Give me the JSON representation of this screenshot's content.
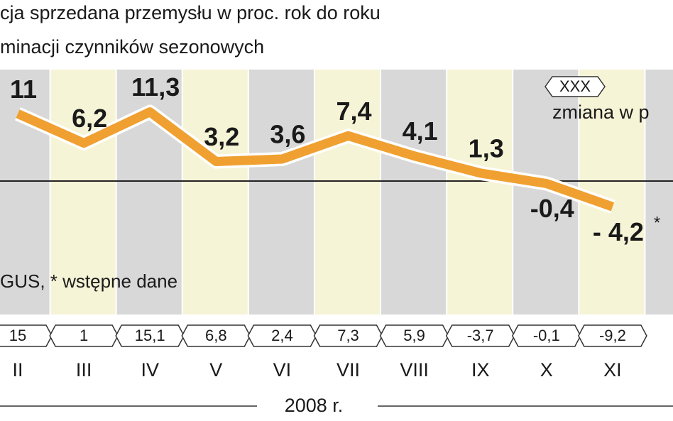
{
  "chart_data": {
    "type": "line",
    "title": "cja sprzedana przemysłu w proc. rok do roku",
    "subtitle": "minacji czynników sezonowych",
    "categories": [
      "II",
      "III",
      "IV",
      "V",
      "VI",
      "VII",
      "VIII",
      "IX",
      "X",
      "XI"
    ],
    "series": [
      {
        "name": "zmiana w p",
        "color": "#f0a030",
        "values": [
          11,
          6.2,
          11.3,
          3.2,
          3.6,
          7.4,
          4.1,
          1.3,
          -0.4,
          -4.2
        ],
        "value_labels": [
          "11",
          "6,2",
          "11,3",
          "3,2",
          "3,6",
          "7,4",
          "4,1",
          "1,3",
          "-0,4",
          "- 4,2"
        ]
      }
    ],
    "change_labels": [
      "15",
      "1",
      "15,1",
      "6,8",
      "2,4",
      "7,3",
      "5,9",
      "-3,7",
      "-0,1",
      "-9,2"
    ],
    "legend_box": "XXX",
    "note_mark": "*",
    "source": "GUS, * wstępne dane",
    "year_label": "2008 r.",
    "ylim": [
      -8,
      13
    ]
  }
}
